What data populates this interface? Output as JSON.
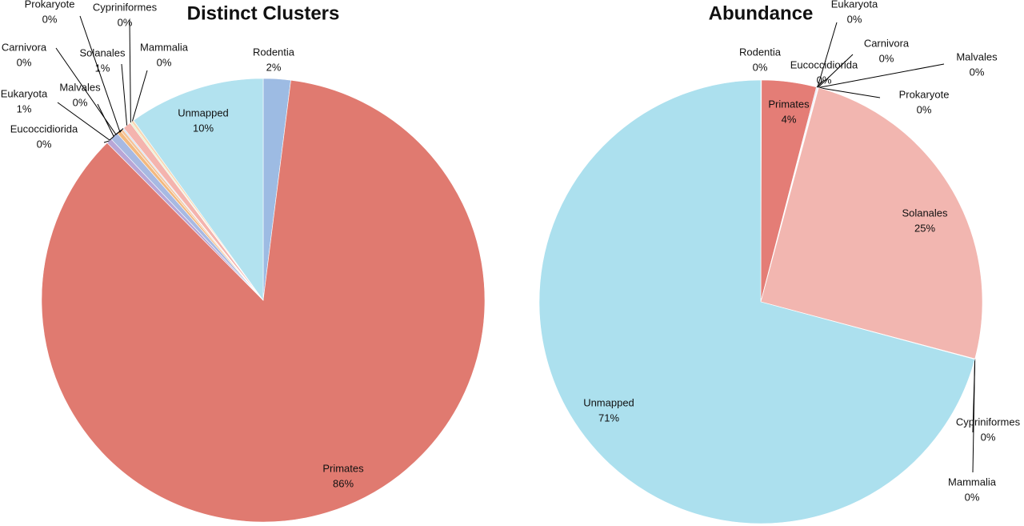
{
  "chart_data": [
    {
      "type": "pie",
      "title": "Distinct Clusters",
      "categories": [
        "Rodentia",
        "Primates",
        "Eucoccidiorida",
        "Eukaryota",
        "Malvales",
        "Carnivora",
        "Prokaryote",
        "Solanales",
        "Cypriniformes",
        "Mammalia",
        "Unmapped"
      ],
      "values": [
        2,
        86,
        0.4,
        0.6,
        0.3,
        0.2,
        0.1,
        0.6,
        0.1,
        0.2,
        10
      ],
      "value_labels": [
        "2%",
        "86%",
        "0%",
        "1%",
        "0%",
        "0%",
        "0%",
        "1%",
        "0%",
        "0%",
        "10%"
      ],
      "colors": [
        "#9dbbe3",
        "#e07a70",
        "#b8a6d6",
        "#a7b9e2",
        "#f3b97f",
        "#f3c39b",
        "#c9d9f0",
        "#f4b4ae",
        "#dff0c4",
        "#f7d9b8",
        "#b2e2ef"
      ]
    },
    {
      "type": "pie",
      "title": "Abundance",
      "categories": [
        "Rodentia",
        "Primates",
        "Eucoccidiorida",
        "Eukaryota",
        "Carnivora",
        "Malvales",
        "Prokaryote",
        "Solanales",
        "Cypriniformes",
        "Mammalia",
        "Unmapped"
      ],
      "values": [
        0.05,
        4,
        0.05,
        0.05,
        0.02,
        0.02,
        0.02,
        25,
        0.02,
        0.02,
        71
      ],
      "value_labels": [
        "0%",
        "4%",
        "0%",
        "0%",
        "0%",
        "0%",
        "0%",
        "25%",
        "0%",
        "0%",
        "71%"
      ],
      "colors": [
        "#9dbbe3",
        "#e47d76",
        "#b8a6d6",
        "#a7b9e2",
        "#f3c39b",
        "#f3b97f",
        "#c9d9f0",
        "#f2b6b0",
        "#dff0c4",
        "#f7d9b8",
        "#ace0ee"
      ]
    }
  ]
}
